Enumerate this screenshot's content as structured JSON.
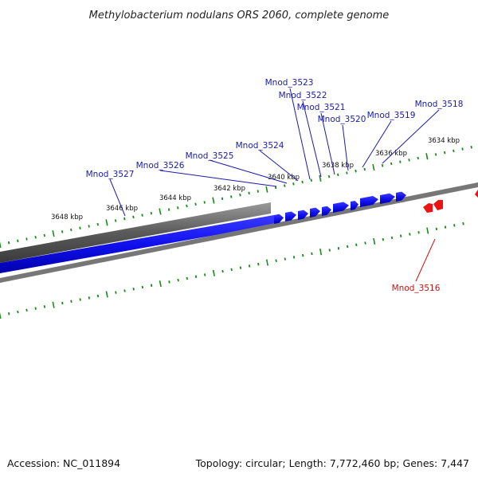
{
  "title": "Methylobacterium nodulans ORS 2060, complete genome",
  "accession": "Accession: NC_011894",
  "summary": "Topology: circular; Length: 7,772,460 bp; Genes: 7,447",
  "colors": {
    "forward_gene": "#1010ee",
    "reverse_gene": "#ee1111",
    "backbone": "#777777",
    "tick": "#1a8a1a",
    "forward_label": "#1a1aaa",
    "reverse_label": "#cc1111"
  },
  "scale_labels": [
    "3634 kbp",
    "3636 kbp",
    "3638 kbp",
    "3640 kbp",
    "3642 kbp",
    "3644 kbp",
    "3646 kbp",
    "3648 kbp"
  ],
  "forward_genes": [
    "Mnod_3518",
    "Mnod_3519",
    "Mnod_3520",
    "Mnod_3521",
    "Mnod_3522",
    "Mnod_3523",
    "Mnod_3524",
    "Mnod_3525",
    "Mnod_3526",
    "Mnod_3527"
  ],
  "reverse_genes": [
    "Mnod_3516"
  ]
}
